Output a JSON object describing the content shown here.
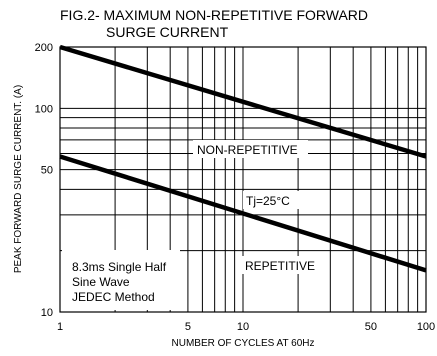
{
  "chart_data": {
    "type": "line",
    "title_line1": "FIG.2- MAXIMUM NON-REPETITIVE FORWARD",
    "title_line2": "SURGE CURRENT",
    "xlabel": "NUMBER OF CYCLES AT 60Hz",
    "ylabel": "PEAK FORWARD SURGE CURRENT. (A)",
    "x_scale": "log",
    "y_scale": "log",
    "xlim": [
      1,
      100
    ],
    "ylim": [
      10,
      200
    ],
    "x_ticks": [
      1,
      5,
      10,
      50,
      100
    ],
    "y_ticks": [
      10,
      50,
      100,
      200
    ],
    "grid": true,
    "series": [
      {
        "name": "NON-REPETITIVE",
        "x": [
          1,
          100
        ],
        "y": [
          200,
          58
        ]
      },
      {
        "name": "REPETITIVE",
        "x": [
          1,
          100
        ],
        "y": [
          58,
          16
        ]
      }
    ],
    "annotations": {
      "temperature": "Tj=25°C",
      "note_lines": [
        "8.3ms Single Half",
        "Sine Wave",
        "JEDEC Method"
      ]
    }
  }
}
